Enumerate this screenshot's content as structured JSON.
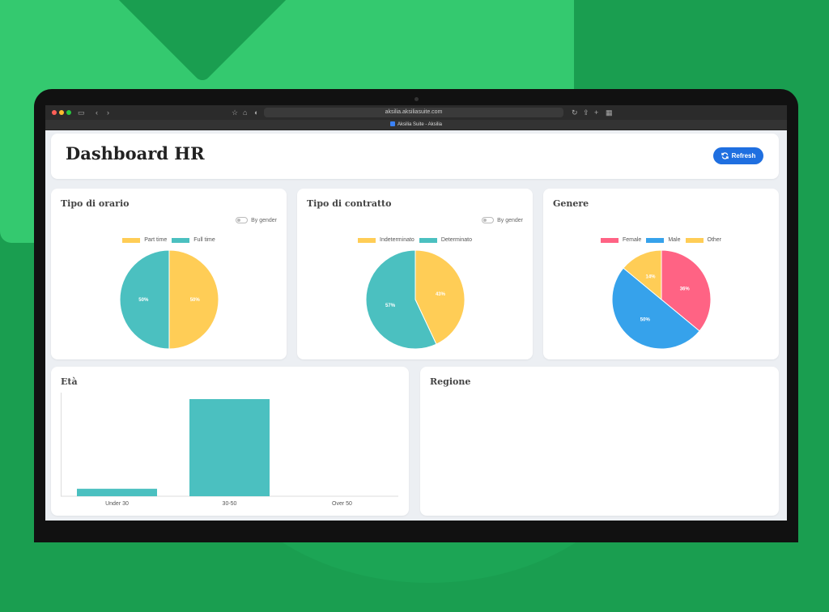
{
  "browser": {
    "url": "aksilia.aksiliasuite.com",
    "tab_title": "Aksilia Suite - Aksilia"
  },
  "header": {
    "title": "Dashboard HR",
    "refresh_label": "Refresh"
  },
  "toggle_label": "By gender",
  "colors": {
    "yellow": "#ffcd56",
    "teal": "#4bc0c0",
    "pink": "#ff6384",
    "blue": "#36a2eb",
    "button": "#1f6fe0"
  },
  "cards": {
    "orario": {
      "title": "Tipo di orario",
      "legend": [
        "Part time",
        "Full time"
      ],
      "chart_data": {
        "type": "pie",
        "labels": [
          "Part time",
          "Full time"
        ],
        "values": [
          50,
          50
        ],
        "data_labels": [
          "50%",
          "50%"
        ]
      }
    },
    "contratto": {
      "title": "Tipo di contratto",
      "legend": [
        "Indeterminato",
        "Determinato"
      ],
      "chart_data": {
        "type": "pie",
        "labels": [
          "Indeterminato",
          "Determinato"
        ],
        "values": [
          43,
          57
        ],
        "data_labels": [
          "43%",
          "57%"
        ]
      }
    },
    "genere": {
      "title": "Genere",
      "legend": [
        "Female",
        "Male",
        "Other"
      ],
      "chart_data": {
        "type": "pie",
        "labels": [
          "Female",
          "Male",
          "Other"
        ],
        "values": [
          36,
          50,
          14
        ],
        "data_labels": [
          "36%",
          "50%",
          "14%"
        ]
      }
    },
    "eta": {
      "title": "Età",
      "chart_data": {
        "type": "bar",
        "categories": [
          "Under 30",
          "30-50",
          "Over 50"
        ],
        "values": [
          1,
          13,
          0
        ],
        "ylim": [
          0,
          13
        ]
      }
    },
    "regione": {
      "title": "Regione"
    }
  }
}
